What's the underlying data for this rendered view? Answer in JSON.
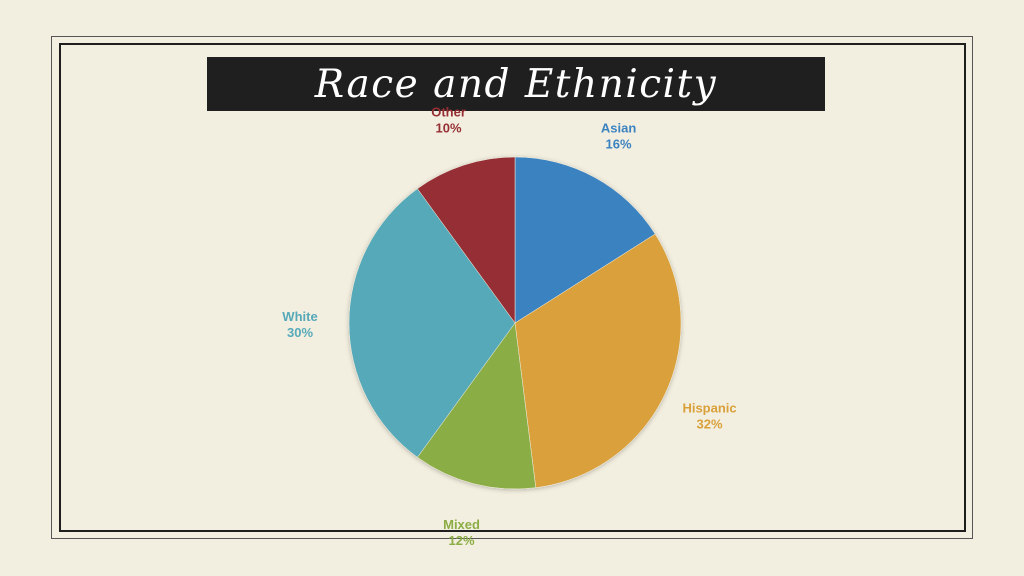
{
  "title": "Race and Ethnicity",
  "chart_data": {
    "type": "pie",
    "title": "Race and Ethnicity",
    "slices": [
      {
        "name": "Asian",
        "value": 16,
        "label": "16%",
        "color": "#3b82c0"
      },
      {
        "name": "Hispanic",
        "value": 32,
        "label": "32%",
        "color": "#d9a03a"
      },
      {
        "name": "Mixed",
        "value": 12,
        "label": "12%",
        "color": "#8bad44"
      },
      {
        "name": "White",
        "value": 30,
        "label": "30%",
        "color": "#56a9b8"
      },
      {
        "name": "Other",
        "value": 10,
        "label": "10%",
        "color": "#952f34"
      }
    ],
    "start_angle": "12 o'clock",
    "direction": "clockwise",
    "labels_outside": true
  }
}
